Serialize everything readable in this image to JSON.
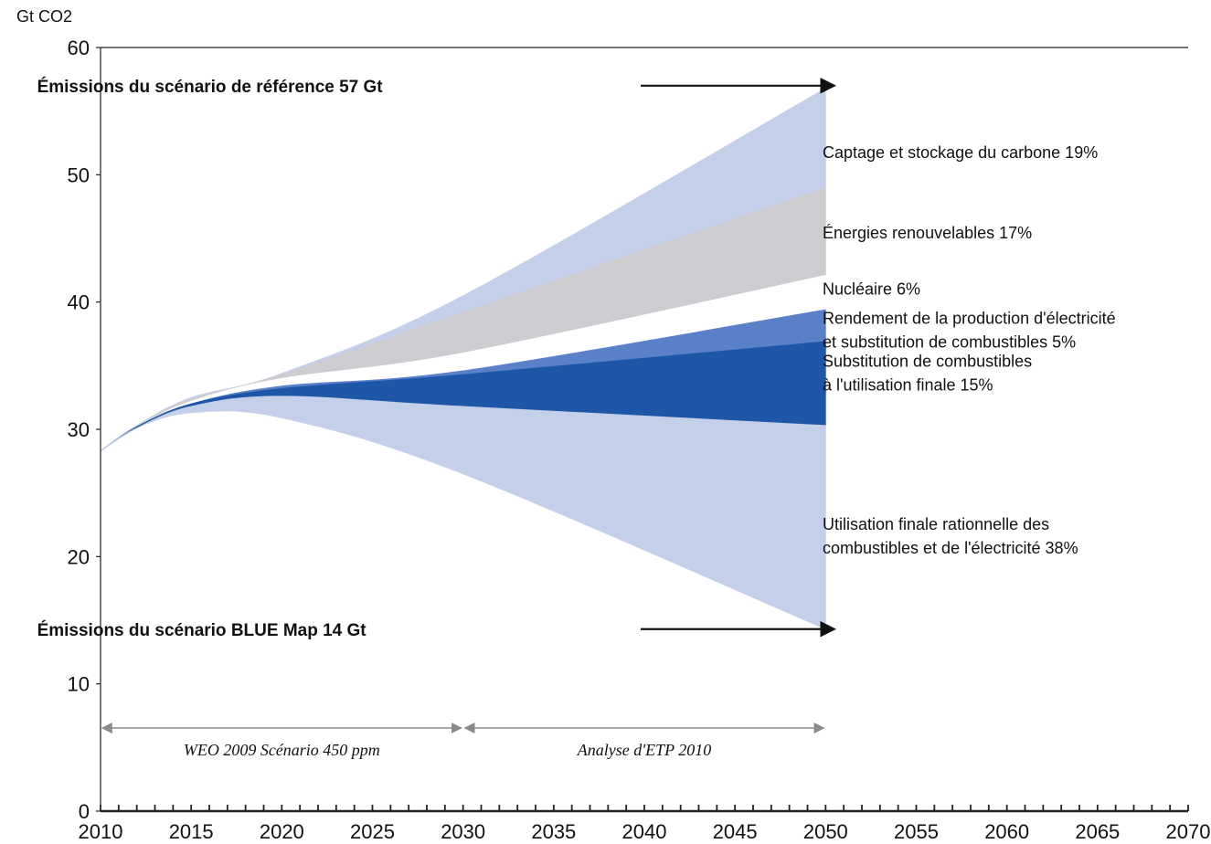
{
  "chart_data": {
    "type": "area",
    "unit_label": "Gt CO2",
    "title": "",
    "xlabel": "",
    "ylabel": "",
    "xlim": [
      2010,
      2070
    ],
    "ylim": [
      0,
      60
    ],
    "x_ticks": [
      2010,
      2015,
      2020,
      2025,
      2030,
      2035,
      2040,
      2045,
      2050,
      2055,
      2060,
      2065,
      2070
    ],
    "y_ticks": [
      0,
      10,
      20,
      30,
      40,
      50,
      60
    ],
    "grid": false,
    "x": [
      2010,
      2012,
      2015,
      2020,
      2030,
      2050
    ],
    "boundaries": {
      "reference": [
        28.3,
        30.3,
        32.5,
        34.4,
        40.5,
        56.8
      ],
      "after_ccs": [
        28.3,
        30.3,
        32.4,
        34.3,
        39.2,
        49.0
      ],
      "after_renewables": [
        28.3,
        30.2,
        32.2,
        34.0,
        36.0,
        42.1
      ],
      "after_nuclear": [
        28.3,
        30.2,
        32.0,
        33.4,
        34.6,
        39.4
      ],
      "after_power_efficiency": [
        28.3,
        30.2,
        32.0,
        33.2,
        34.3,
        36.9
      ],
      "after_end_use_switching": [
        28.3,
        30.1,
        31.8,
        32.6,
        31.8,
        30.3
      ],
      "blue_map": [
        28.3,
        30.1,
        31.3,
        30.9,
        26.5,
        14.3
      ]
    },
    "series": [
      {
        "name": "Captage et stockage du carbone 19%",
        "from": "after_ccs",
        "to": "reference",
        "color": "#c4cfe9"
      },
      {
        "name": "Énergies renouvelables 17%",
        "from": "after_renewables",
        "to": "after_ccs",
        "color": "#cdcdd1"
      },
      {
        "name": "Nucléaire 6%",
        "from": "after_nuclear",
        "to": "after_renewables",
        "color": "#ffffff"
      },
      {
        "name": "Rendement de la production d'électricité et substitution de combustibles 5%",
        "from": "after_power_efficiency",
        "to": "after_nuclear",
        "color": "#5a80c8"
      },
      {
        "name": "Substitution  de combustibles à l'utilisation finale 15%",
        "from": "after_end_use_switching",
        "to": "after_power_efficiency",
        "color": "#1e56a8"
      },
      {
        "name": "Utilisation finale rationnelle des combustibles et de l'électricité 38%",
        "from": "blue_map",
        "to": "after_end_use_switching",
        "color": "#c4cfe9"
      }
    ],
    "series_labels": [
      {
        "lines": [
          "Captage et stockage du carbone 19%"
        ],
        "y": 51.3
      },
      {
        "lines": [
          "Énergies renouvelables 17%"
        ],
        "y": 45.0
      },
      {
        "lines": [
          "Nucléaire 6%"
        ],
        "y": 40.6
      },
      {
        "lines": [
          "Rendement de la production d'électricité",
          "et substitution de combustibles 5%"
        ],
        "y": 38.3
      },
      {
        "lines": [
          "Substitution  de combustibles",
          "à l'utilisation finale 15%"
        ],
        "y": 34.9
      },
      {
        "lines": [
          "Utilisation finale rationnelle des",
          "combustibles et de l'électricité 38%"
        ],
        "y": 22.1
      }
    ],
    "annotations": [
      {
        "text": "Émissions du scénario de référence 57 Gt",
        "x": 2006.5,
        "y": 57.0,
        "arrow_from": 2039.8,
        "arrow_to": 2050.5
      },
      {
        "text": "Émissions du scénario BLUE Map 14 Gt",
        "x": 2006.5,
        "y": 14.3,
        "arrow_from": 2039.8,
        "arrow_to": 2050.5
      }
    ],
    "periods": [
      {
        "label": "WEO 2009 Scénario 450 ppm",
        "from": 2010,
        "to": 2030
      },
      {
        "label": "Analyse d'ETP 2010",
        "from": 2030,
        "to": 2050
      }
    ],
    "colors": {
      "axis": "#222222",
      "text": "#111111",
      "arrow": "#111111",
      "period_line": "#8a8a8a"
    }
  }
}
